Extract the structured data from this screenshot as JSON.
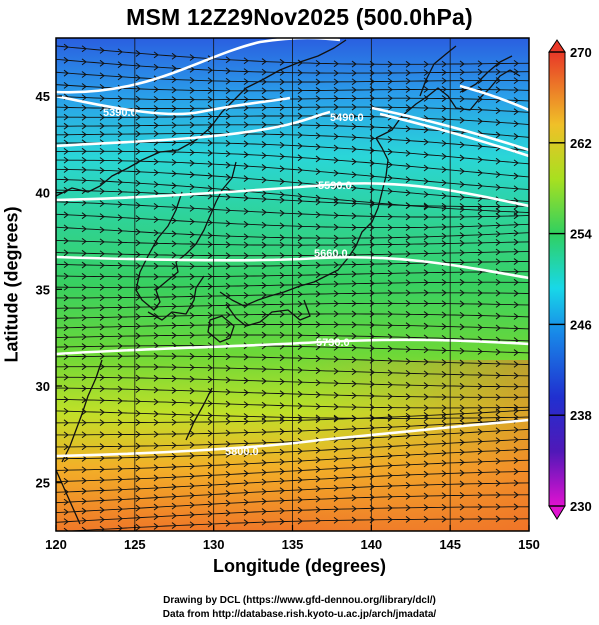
{
  "title": "MSM 12Z29Nov2025 (500.0hPa)",
  "axes": {
    "xlabel": "Longitude (degrees)",
    "ylabel": "Latitude  (degrees)",
    "x_range": [
      120,
      150
    ],
    "y_range": [
      22.5,
      48
    ],
    "x_ticks": [
      "120",
      "125",
      "130",
      "135",
      "140",
      "145",
      "150"
    ],
    "y_ticks": [
      "25",
      "30",
      "35",
      "40",
      "45"
    ]
  },
  "colorbar": {
    "range": [
      230,
      270
    ],
    "tick_labels": [
      "270",
      "262",
      "254",
      "246",
      "238",
      "230"
    ],
    "palette": [
      "#e012d0",
      "#2818c0",
      "#1870e8",
      "#18d8e8",
      "#30d060",
      "#a8e020",
      "#f0e028",
      "#f89028",
      "#e83828"
    ]
  },
  "contours": {
    "labels": [
      "5390.0",
      "5490.0",
      "5590.0",
      "5660.0",
      "5730.0",
      "5800.0"
    ]
  },
  "credits": {
    "line1": "Drawing by DCL (https://www.gfd-dennou.org/library/dcl/)",
    "line2": "Data from http://database.rish.kyoto-u.ac.jp/arch/jmadata/"
  }
}
